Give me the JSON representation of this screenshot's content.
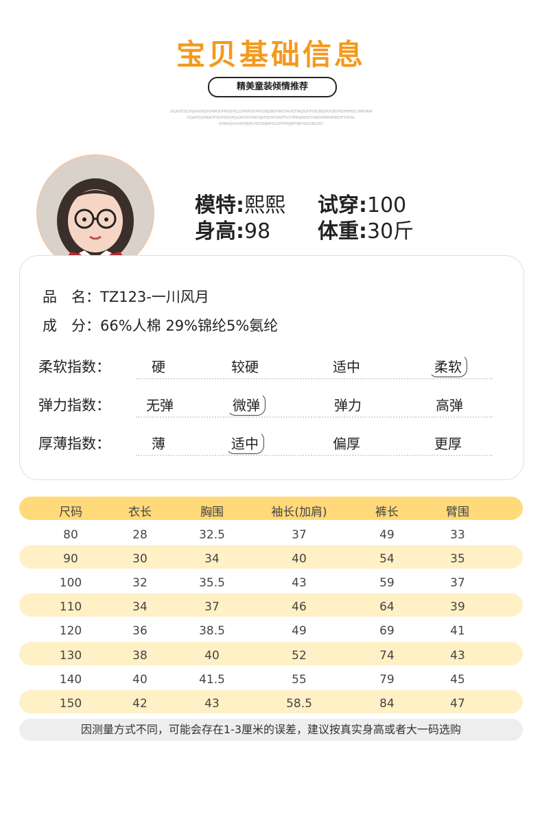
{
  "header": {
    "title": "宝贝基础信息",
    "subtitle": "精美童装倾情推荐",
    "tiny_lines": [
      "OILJKDFJSLDSJHGDKJRSHNKSDFRKSDFJL2DKNHSDPHSDNJSBDFNKFSADFJFNKJSDHFOSLBDJHUFJSDFKDFBPSEL3NPOKW",
      "OSJADFJSDNJKDFSDHSKSDFJLKAFDSFHNDSJKFSDHFDRKTFVCHFAHJNDSLTSNKDMNRNKBSDFYHDSL",
      "KVNDKJVCHSDFJNJFLFEDSNJNFDLGHTRHJNJFHJRFDJDGNLSFD"
    ]
  },
  "model": {
    "name_label": "模特:",
    "name_value": "熙熙",
    "try_label": "试穿:",
    "try_value": "100",
    "height_label": "身高:",
    "height_value": "98",
    "weight_label": "体重:",
    "weight_value": "30斤"
  },
  "product": {
    "name_label": "品　名：",
    "name_value": "TZ123-一川风月",
    "comp_label": "成　分：",
    "comp_value": "66%人棉 29%锦纶5%氨纶"
  },
  "indices": [
    {
      "label": "柔软指数：",
      "options": [
        "硬",
        "较硬",
        "适中",
        "柔软"
      ],
      "selected": "柔软"
    },
    {
      "label": "弹力指数：",
      "options": [
        "无弹",
        "微弹",
        "弹力",
        "高弹"
      ],
      "selected": "微弹"
    },
    {
      "label": "厚薄指数：",
      "options": [
        "薄",
        "适中",
        "偏厚",
        "更厚"
      ],
      "selected": "适中"
    }
  ],
  "size_table": {
    "headers": [
      "尺码",
      "衣长",
      "胸围",
      "袖长(加肩)",
      "裤长",
      "臂围"
    ],
    "rows": [
      [
        "80",
        "28",
        "32.5",
        "37",
        "49",
        "33"
      ],
      [
        "90",
        "30",
        "34",
        "40",
        "54",
        "35"
      ],
      [
        "100",
        "32",
        "35.5",
        "43",
        "59",
        "37"
      ],
      [
        "110",
        "34",
        "37",
        "46",
        "64",
        "39"
      ],
      [
        "120",
        "36",
        "38.5",
        "49",
        "69",
        "41"
      ],
      [
        "130",
        "38",
        "40",
        "52",
        "74",
        "43"
      ],
      [
        "140",
        "40",
        "41.5",
        "55",
        "79",
        "45"
      ],
      [
        "150",
        "42",
        "43",
        "58.5",
        "84",
        "47"
      ]
    ]
  },
  "note": "因测量方式不同，可能会存在1-3厘米的误差，建议按真实身高或者大一码选购",
  "colors": {
    "accent": "#f39a1e",
    "header_row": "#ffd97a",
    "stripe_row": "#fff0c6",
    "highlight": "#fbd3c1"
  }
}
